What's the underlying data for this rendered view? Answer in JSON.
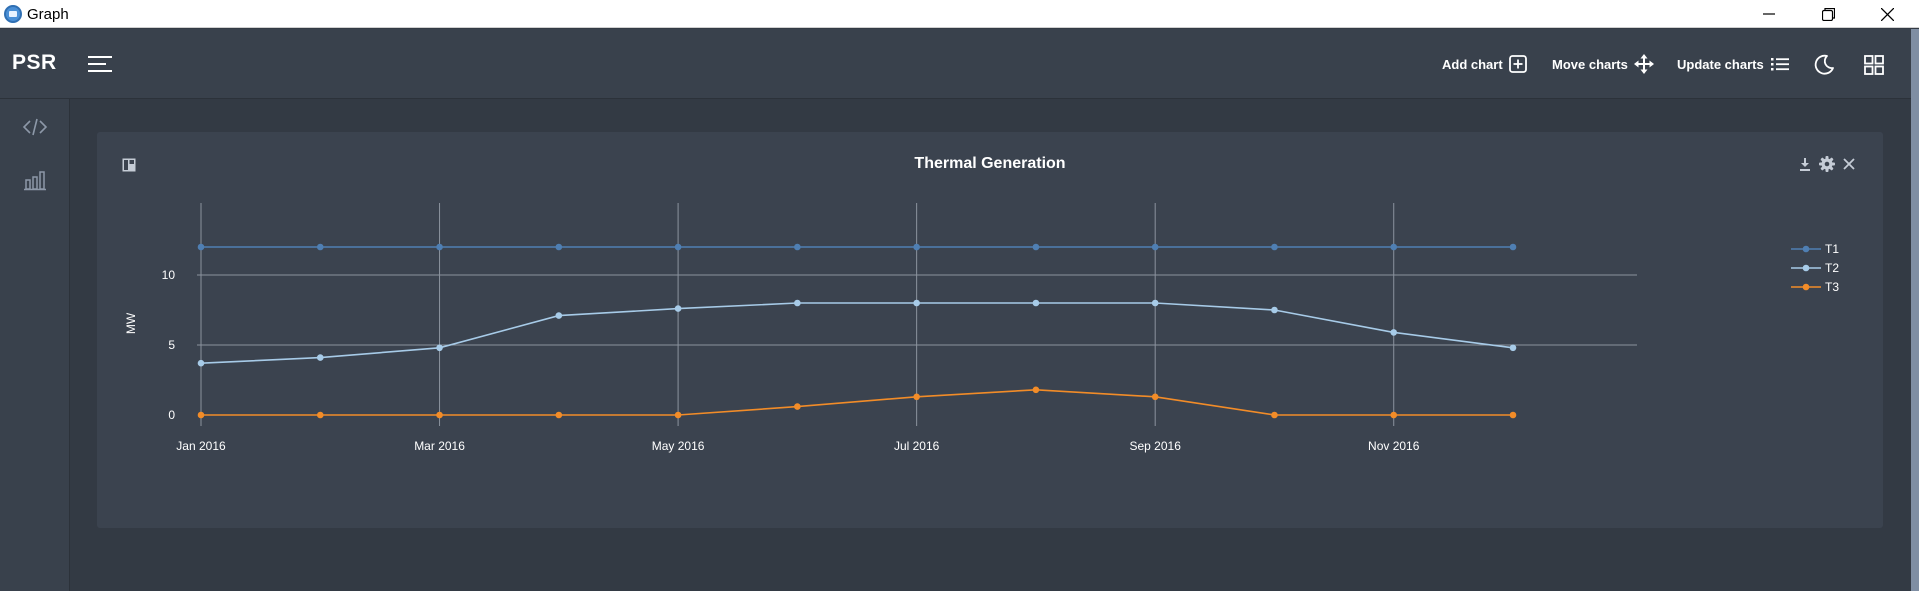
{
  "window": {
    "title": "Graph"
  },
  "header": {
    "brand": "PSR",
    "actions": {
      "add_chart": "Add chart",
      "move_charts": "Move charts",
      "update_charts": "Update charts"
    }
  },
  "sidebar": {
    "icons": [
      "code-icon",
      "bar-chart-icon"
    ]
  },
  "card": {
    "title": "Thermal Generation"
  },
  "colors": {
    "t1": "#4f7fb3",
    "t2": "#a7cbe8",
    "t3": "#f28c28",
    "background": "#333a44",
    "card": "#3b434f"
  },
  "chart_data": {
    "type": "line",
    "title": "Thermal Generation",
    "xlabel": "",
    "ylabel": "MW",
    "x": [
      "2016-01",
      "2016-02",
      "2016-03",
      "2016-04",
      "2016-05",
      "2016-06",
      "2016-07",
      "2016-08",
      "2016-09",
      "2016-10",
      "2016-11",
      "2016-12"
    ],
    "x_tick_labels": [
      "Jan 2016",
      "Mar 2016",
      "May 2016",
      "Jul 2016",
      "Sep 2016",
      "Nov 2016"
    ],
    "y_ticks": [
      "0",
      "5",
      "10"
    ],
    "ylim": [
      -0.5,
      13
    ],
    "grid": true,
    "legend": "right",
    "series": [
      {
        "name": "T1",
        "color": "#4f7fb3",
        "values": [
          12,
          12,
          12,
          12,
          12,
          12,
          12,
          12,
          12,
          12,
          12,
          12
        ]
      },
      {
        "name": "T2",
        "color": "#a7cbe8",
        "values": [
          3.7,
          4.1,
          4.8,
          7.1,
          7.6,
          8,
          8,
          8,
          8,
          7.5,
          5.9,
          4.8
        ]
      },
      {
        "name": "T3",
        "color": "#f28c28",
        "values": [
          0,
          0,
          0,
          0,
          0,
          0.6,
          1.3,
          1.8,
          1.3,
          0,
          0,
          0
        ]
      }
    ]
  }
}
